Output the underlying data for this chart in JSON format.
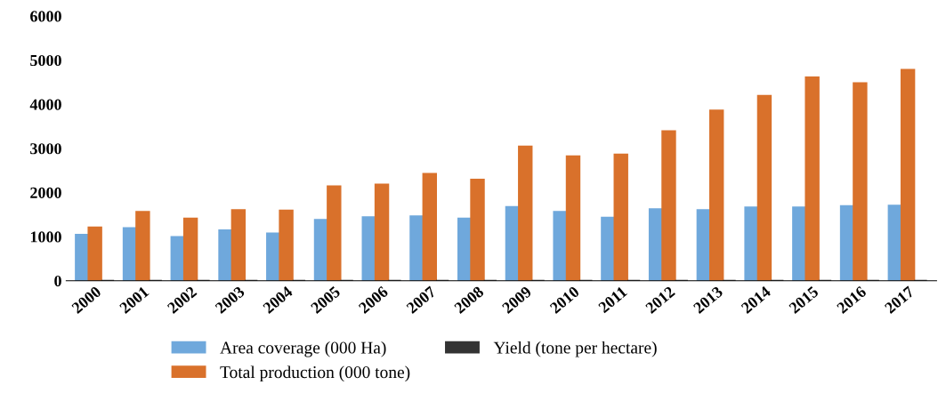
{
  "chart_data": {
    "type": "bar",
    "categories": [
      "2000",
      "2001",
      "2002",
      "2003",
      "2004",
      "2005",
      "2006",
      "2007",
      "2008",
      "2009",
      "2010",
      "2011",
      "2012",
      "2013",
      "2014",
      "2015",
      "2016",
      "2017"
    ],
    "series": [
      {
        "name": "Area coverage (000 Ha)",
        "color": "#6fa8dc",
        "values": [
          1040,
          1190,
          990,
          1140,
          1070,
          1380,
          1440,
          1460,
          1410,
          1670,
          1560,
          1430,
          1620,
          1600,
          1660,
          1660,
          1690,
          1700
        ]
      },
      {
        "name": "Total production (000 tone)",
        "color": "#d9712b",
        "values": [
          1210,
          1560,
          1410,
          1600,
          1590,
          2140,
          2180,
          2420,
          2290,
          3040,
          2820,
          2860,
          3390,
          3860,
          4190,
          4610,
          4480,
          4780
        ]
      },
      {
        "name": "Yield (tone per hectare)",
        "color": "#333333",
        "values": [
          0,
          0,
          0,
          0,
          0,
          0,
          0,
          0,
          0,
          0,
          0,
          0,
          0,
          0,
          0,
          0,
          0,
          0
        ]
      }
    ],
    "ylim": [
      0,
      6000
    ],
    "yticks": [
      0,
      1000,
      2000,
      3000,
      4000,
      5000,
      6000
    ],
    "grid": false,
    "legend": "bottom"
  }
}
